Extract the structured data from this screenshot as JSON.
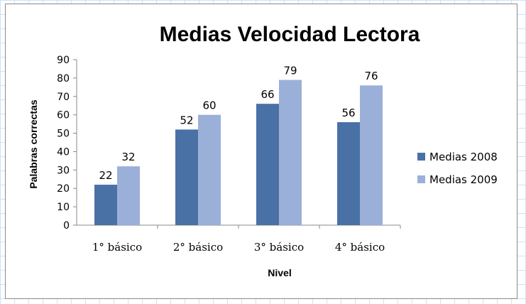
{
  "chart_data": {
    "type": "bar",
    "title": "Medias Velocidad Lectora",
    "xlabel": "Nivel",
    "ylabel": "Palabras correctas",
    "ylim": [
      0,
      90
    ],
    "ytick_step": 10,
    "categories": [
      "1° básico",
      "2° básico",
      "3° básico",
      "4° básico"
    ],
    "series": [
      {
        "name": "Medias 2008",
        "values": [
          22,
          52,
          66,
          56
        ],
        "color": "#4a71a6"
      },
      {
        "name": "Medias 2009",
        "values": [
          32,
          60,
          79,
          76
        ],
        "color": "#9bb0d8"
      }
    ],
    "legend_position": "right",
    "grid": false,
    "data_labels": true
  }
}
